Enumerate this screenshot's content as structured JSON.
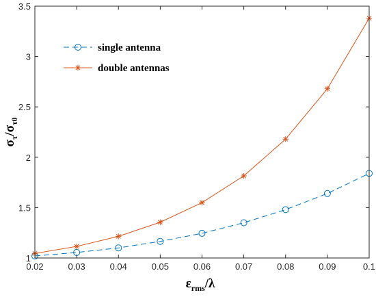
{
  "chart_data": {
    "type": "line",
    "x": [
      0.02,
      0.03,
      0.04,
      0.05,
      0.06,
      0.07,
      0.08,
      0.09,
      0.1
    ],
    "x_tick_labels": [
      "0.02",
      "0.03",
      "0.04",
      "0.05",
      "0.06",
      "0.07",
      "0.08",
      "0.09",
      "0.1"
    ],
    "y_tick_values": [
      1,
      1.5,
      2,
      2.5,
      3,
      3.5
    ],
    "y_tick_labels": [
      "1",
      "1.5",
      "2",
      "2.5",
      "3",
      "3.5"
    ],
    "xlim": [
      0.02,
      0.1
    ],
    "ylim": [
      1,
      3.5
    ],
    "grid": false,
    "legend_position": "top-left",
    "xlabel": {
      "main": "ε",
      "sub": "rms",
      "tail": "/λ"
    },
    "ylabel": {
      "main1": "σ",
      "sub1": "τ",
      "slash": "/",
      "main2": "σ",
      "sub2": "τ0"
    },
    "series": [
      {
        "name": "single antenna",
        "values": [
          1.02,
          1.055,
          1.1,
          1.165,
          1.245,
          1.35,
          1.48,
          1.64,
          1.84
        ],
        "color": "#0072BD",
        "line_style": "dashed",
        "marker": "circle"
      },
      {
        "name": "double antennas",
        "values": [
          1.045,
          1.115,
          1.215,
          1.355,
          1.55,
          1.815,
          2.18,
          2.68,
          3.38
        ],
        "color": "#D95319",
        "line_style": "solid",
        "marker": "asterisk"
      }
    ]
  }
}
